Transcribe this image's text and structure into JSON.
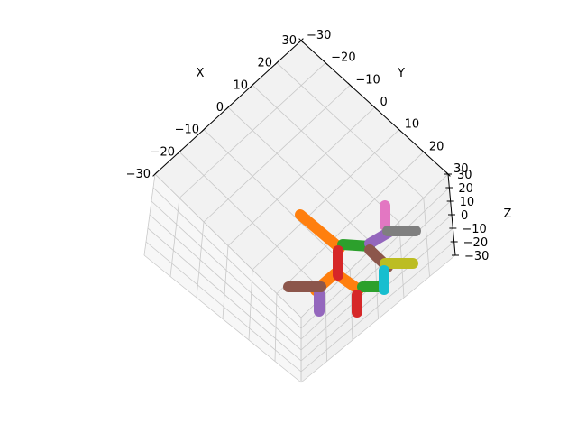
{
  "chart_data": {
    "type": "scatter",
    "projection": "3d",
    "view": "axes viewed from above, rotated so the x and y axes run diagonally",
    "axes": {
      "x": {
        "label": "X",
        "lim": [
          -30,
          30
        ],
        "ticks": [
          "−30",
          "−20",
          "−10",
          "0",
          "10",
          "20",
          "30"
        ]
      },
      "y": {
        "label": "Y",
        "lim": [
          -30,
          30
        ],
        "ticks": [
          "−30",
          "−20",
          "−10",
          "0",
          "10",
          "20",
          "30"
        ]
      },
      "z": {
        "label": "Z",
        "lim": [
          -30,
          30
        ],
        "ticks": [
          "−30",
          "−20",
          "−10",
          "0",
          "10",
          "20",
          "30"
        ]
      }
    },
    "grid": true,
    "legend": "none",
    "series": [
      {
        "color": "#1f77b4",
        "segments": 1
      },
      {
        "color": "#ff7f0e",
        "segments": 2
      },
      {
        "color": "#2ca02c",
        "segments": 2
      },
      {
        "color": "#d62728",
        "segments": 2
      },
      {
        "color": "#9467bd",
        "segments": 2
      },
      {
        "color": "#8c564b",
        "segments": 2
      },
      {
        "color": "#e377c2",
        "segments": 1
      },
      {
        "color": "#7f7f7f",
        "segments": 1
      },
      {
        "color": "#bcbd22",
        "segments": 1
      },
      {
        "color": "#17becf",
        "segments": 1
      }
    ]
  }
}
